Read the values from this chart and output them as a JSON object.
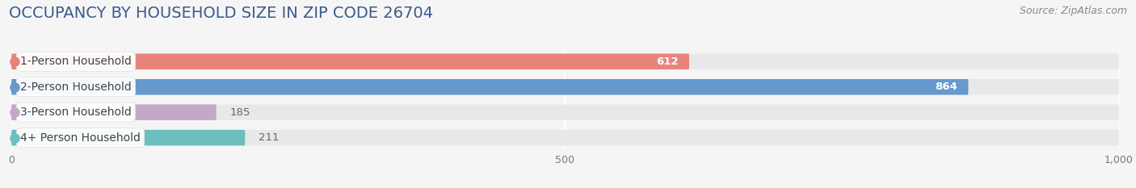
{
  "title": "OCCUPANCY BY HOUSEHOLD SIZE IN ZIP CODE 26704",
  "source": "Source: ZipAtlas.com",
  "categories": [
    "1-Person Household",
    "2-Person Household",
    "3-Person Household",
    "4+ Person Household"
  ],
  "values": [
    612,
    864,
    185,
    211
  ],
  "bar_colors": [
    "#E8837A",
    "#6699CC",
    "#C4A8C8",
    "#6BBFBF"
  ],
  "background_color": "#F5F5F5",
  "bar_bg_color": "#E8E8E8",
  "xlim": [
    0,
    1000
  ],
  "xticks": [
    0,
    500,
    1000
  ],
  "xtick_labels": [
    "0",
    "500",
    "1,000"
  ],
  "title_fontsize": 14,
  "label_fontsize": 10,
  "value_fontsize": 9.5,
  "source_fontsize": 9,
  "title_color": "#3A5A8C",
  "source_color": "#888888",
  "label_color": "#444444",
  "value_color_inside": "#FFFFFF",
  "value_color_outside": "#666666",
  "inside_threshold": 300
}
